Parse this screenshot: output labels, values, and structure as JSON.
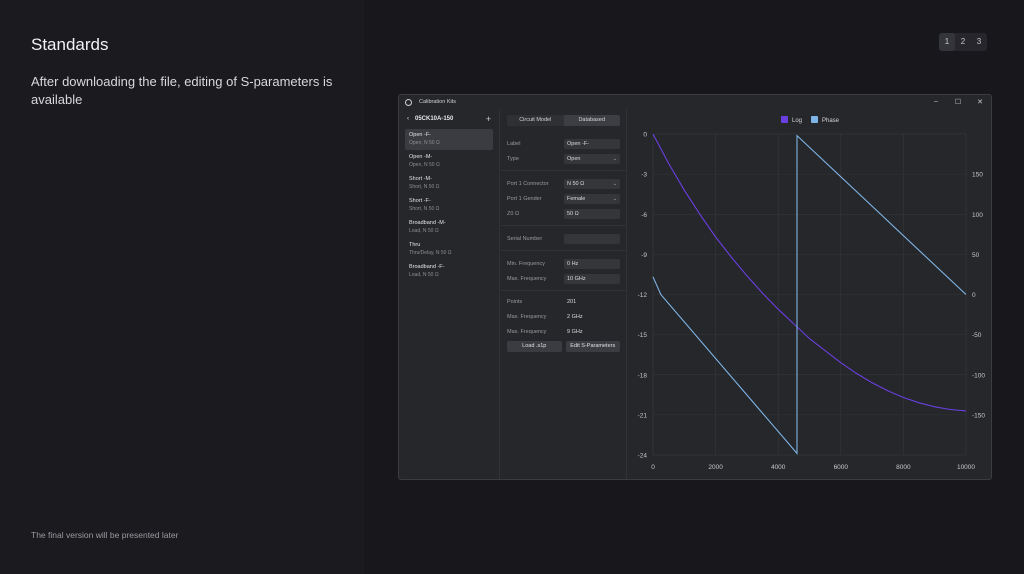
{
  "slide": {
    "title": "Standards",
    "description": "After downloading the file, editing of S-parameters is available",
    "footer": "The final version will be presented later",
    "pages": [
      "1",
      "2",
      "3"
    ]
  },
  "window": {
    "title": "Calibration Kits",
    "controls": [
      "–",
      "☐",
      "✕"
    ]
  },
  "kit": {
    "name": "05CK10A-150",
    "back_icon": "‹",
    "add_icon": "+",
    "standards": [
      {
        "name": "Open -F-",
        "sub": "Open, N 50 Ω"
      },
      {
        "name": "Open -M-",
        "sub": "Open, N 50 Ω"
      },
      {
        "name": "Short -M-",
        "sub": "Short, N 50 Ω"
      },
      {
        "name": "Short -F-",
        "sub": "Short, N 50 Ω"
      },
      {
        "name": "Broadband -M-",
        "sub": "Load, N 50 Ω"
      },
      {
        "name": "Thru",
        "sub": "Thru/Delay, N 50 Ω"
      },
      {
        "name": "Broadband -F-",
        "sub": "Load, N 50 Ω"
      }
    ]
  },
  "editor": {
    "tabs": [
      "Circuit Model",
      "Databased"
    ],
    "label": {
      "label": "Label",
      "value": "Open -F-"
    },
    "type": {
      "label": "Type",
      "value": "Open"
    },
    "port1_connector": {
      "label": "Port 1 Connector",
      "value": "N 50 Ω"
    },
    "port1_gender": {
      "label": "Port 1 Gender",
      "value": "Female"
    },
    "z0": {
      "label": "Z0 Ω",
      "value": "50 Ω"
    },
    "serial": {
      "label": "Serial Number",
      "value": ""
    },
    "min_freq": {
      "label": "Min. Frequency",
      "value": "0 Hz"
    },
    "max_freq": {
      "label": "Max. Frequency",
      "value": "10 GHz"
    },
    "points": {
      "label": "Points",
      "value": "201"
    },
    "max_freq2": {
      "label": "Max. Frequency",
      "value": "2 GHz"
    },
    "max_freq3": {
      "label": "Max. Frequency",
      "value": "9 GHz"
    },
    "load_button": "Load .s1p",
    "edit_button": "Edit S-Parameters"
  },
  "chart_data": {
    "type": "line",
    "legend_position": "top-center",
    "xlim": [
      0,
      10000
    ],
    "ylim_left": [
      -24,
      0
    ],
    "ylim_right": [
      -200,
      200
    ],
    "x_ticks": [
      "0",
      "2000",
      "4000",
      "6000",
      "8000",
      "10000"
    ],
    "y_left_ticks": [
      "0",
      "-3",
      "-6",
      "-9",
      "-12",
      "-15",
      "-18",
      "-21",
      "-24"
    ],
    "y_right_ticks": [
      "150",
      "100",
      "50",
      "0",
      "-50",
      "-100",
      "-150"
    ],
    "grid": true,
    "series": [
      {
        "name": "Log",
        "color": "#6a3fe0",
        "axis": "left",
        "x": [
          0,
          500,
          1000,
          1500,
          2000,
          2500,
          3000,
          3500,
          4000,
          4500,
          5000,
          5500,
          6000,
          6500,
          7000,
          7500,
          8000,
          8500,
          9000,
          9500,
          10000
        ],
        "y": [
          0,
          -2.2,
          -4.2,
          -6.0,
          -7.7,
          -9.2,
          -10.6,
          -11.9,
          -13.1,
          -14.2,
          -15.3,
          -16.2,
          -17.1,
          -17.9,
          -18.6,
          -19.2,
          -19.7,
          -20.1,
          -20.4,
          -20.6,
          -20.7
        ]
      },
      {
        "name": "Phase",
        "color": "#7fb4e6",
        "axis": "right",
        "x": [
          0,
          250,
          4600,
          4600,
          10000
        ],
        "y": [
          22,
          0,
          -198,
          198,
          0
        ]
      }
    ]
  }
}
